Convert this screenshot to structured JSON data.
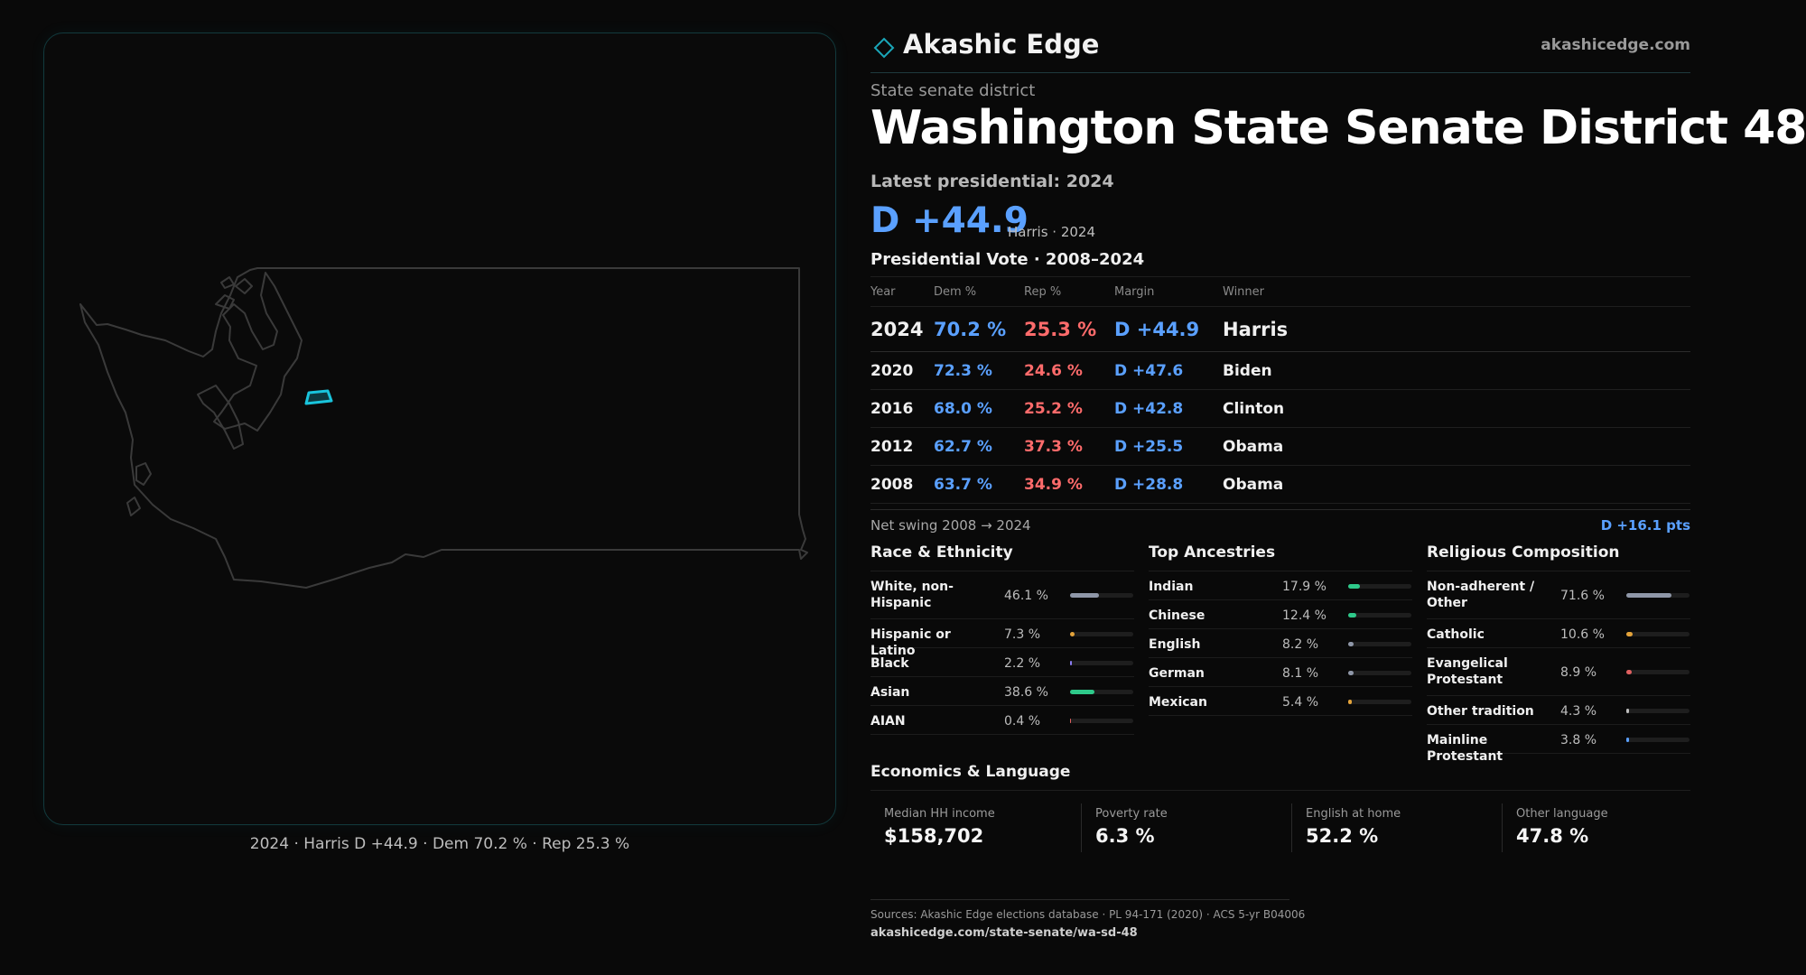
{
  "map": {
    "caption": "2024 · Harris D +44.9 · Dem 70.2 % · Rep 25.3 %",
    "state_outline_color": "#3a3a3a",
    "district_color": "#19c4dc"
  },
  "header": {
    "brand": "Akashic Edge",
    "domain": "akashicedge.com",
    "icon": "diamond-logo-icon"
  },
  "district": {
    "kicker": "State senate district",
    "title": "Washington State Senate District 48",
    "latest_label": "Latest presidential: 2024",
    "margin": "D +44.9",
    "margin_sub": "Harris · 2024"
  },
  "presidential": {
    "title": "Presidential Vote · 2008–2024",
    "headers": {
      "year": "Year",
      "dem": "Dem %",
      "rep": "Rep %",
      "margin": "Margin",
      "winner": "Winner"
    },
    "rows": [
      {
        "year": "2024",
        "dem": "70.2 %",
        "rep": "25.3 %",
        "margin": "D +44.9",
        "winner": "Harris"
      },
      {
        "year": "2020",
        "dem": "72.3 %",
        "rep": "24.6 %",
        "margin": "D +47.6",
        "winner": "Biden"
      },
      {
        "year": "2016",
        "dem": "68.0 %",
        "rep": "25.2 %",
        "margin": "D +42.8",
        "winner": "Clinton"
      },
      {
        "year": "2012",
        "dem": "62.7 %",
        "rep": "37.3 %",
        "margin": "D +25.5",
        "winner": "Obama"
      },
      {
        "year": "2008",
        "dem": "63.7 %",
        "rep": "34.9 %",
        "margin": "D +28.8",
        "winner": "Obama"
      }
    ],
    "swing_label": "Net swing 2008 → 2024",
    "swing_value": "D +16.1 pts"
  },
  "race": {
    "title": "Race & Ethnicity",
    "items": [
      {
        "label": "White, non-Hispanic",
        "value": "46.1 %",
        "pct": 46.1,
        "color": "#8f97a8",
        "tall": true
      },
      {
        "label": "Hispanic or Latino",
        "value": "7.3 %",
        "pct": 7.3,
        "color": "#e3a33a"
      },
      {
        "label": "Black",
        "value": "2.2 %",
        "pct": 2.2,
        "color": "#8a7cf0"
      },
      {
        "label": "Asian",
        "value": "38.6 %",
        "pct": 38.6,
        "color": "#2ec98a"
      },
      {
        "label": "AIAN",
        "value": "0.4 %",
        "pct": 0.4,
        "color": "#e06060"
      }
    ]
  },
  "ancestry": {
    "title": "Top Ancestries",
    "items": [
      {
        "label": "Indian",
        "value": "17.9 %",
        "pct": 17.9,
        "color": "#2ec98a"
      },
      {
        "label": "Chinese",
        "value": "12.4 %",
        "pct": 12.4,
        "color": "#2ec98a"
      },
      {
        "label": "English",
        "value": "8.2 %",
        "pct": 8.2,
        "color": "#8f97a8"
      },
      {
        "label": "German",
        "value": "8.1 %",
        "pct": 8.1,
        "color": "#8f97a8"
      },
      {
        "label": "Mexican",
        "value": "5.4 %",
        "pct": 5.4,
        "color": "#e3a33a"
      }
    ]
  },
  "religion": {
    "title": "Religious Composition",
    "items": [
      {
        "label": "Non-adherent / Other",
        "value": "71.6 %",
        "pct": 71.6,
        "color": "#8f97a8",
        "tall": true
      },
      {
        "label": "Catholic",
        "value": "10.6 %",
        "pct": 10.6,
        "color": "#e3a33a"
      },
      {
        "label": "Evangelical Protestant",
        "value": "8.9 %",
        "pct": 8.9,
        "color": "#e06060",
        "tall": true
      },
      {
        "label": "Other tradition",
        "value": "4.3 %",
        "pct": 4.3,
        "color": "#bdbdbd"
      },
      {
        "label": "Mainline Protestant",
        "value": "3.8 %",
        "pct": 3.8,
        "color": "#5aa0ff"
      }
    ]
  },
  "economics": {
    "title": "Economics & Language",
    "items": [
      {
        "label": "Median HH income",
        "value": "$158,702"
      },
      {
        "label": "Poverty rate",
        "value": "6.3 %"
      },
      {
        "label": "English at home",
        "value": "52.2 %"
      },
      {
        "label": "Other language",
        "value": "47.8 %"
      }
    ]
  },
  "sources": {
    "line1": "Sources: Akashic Edge elections database · PL 94-171 (2020) · ACS 5-yr B04006",
    "line2": "akashicedge.com/state-senate/wa-sd-48"
  }
}
